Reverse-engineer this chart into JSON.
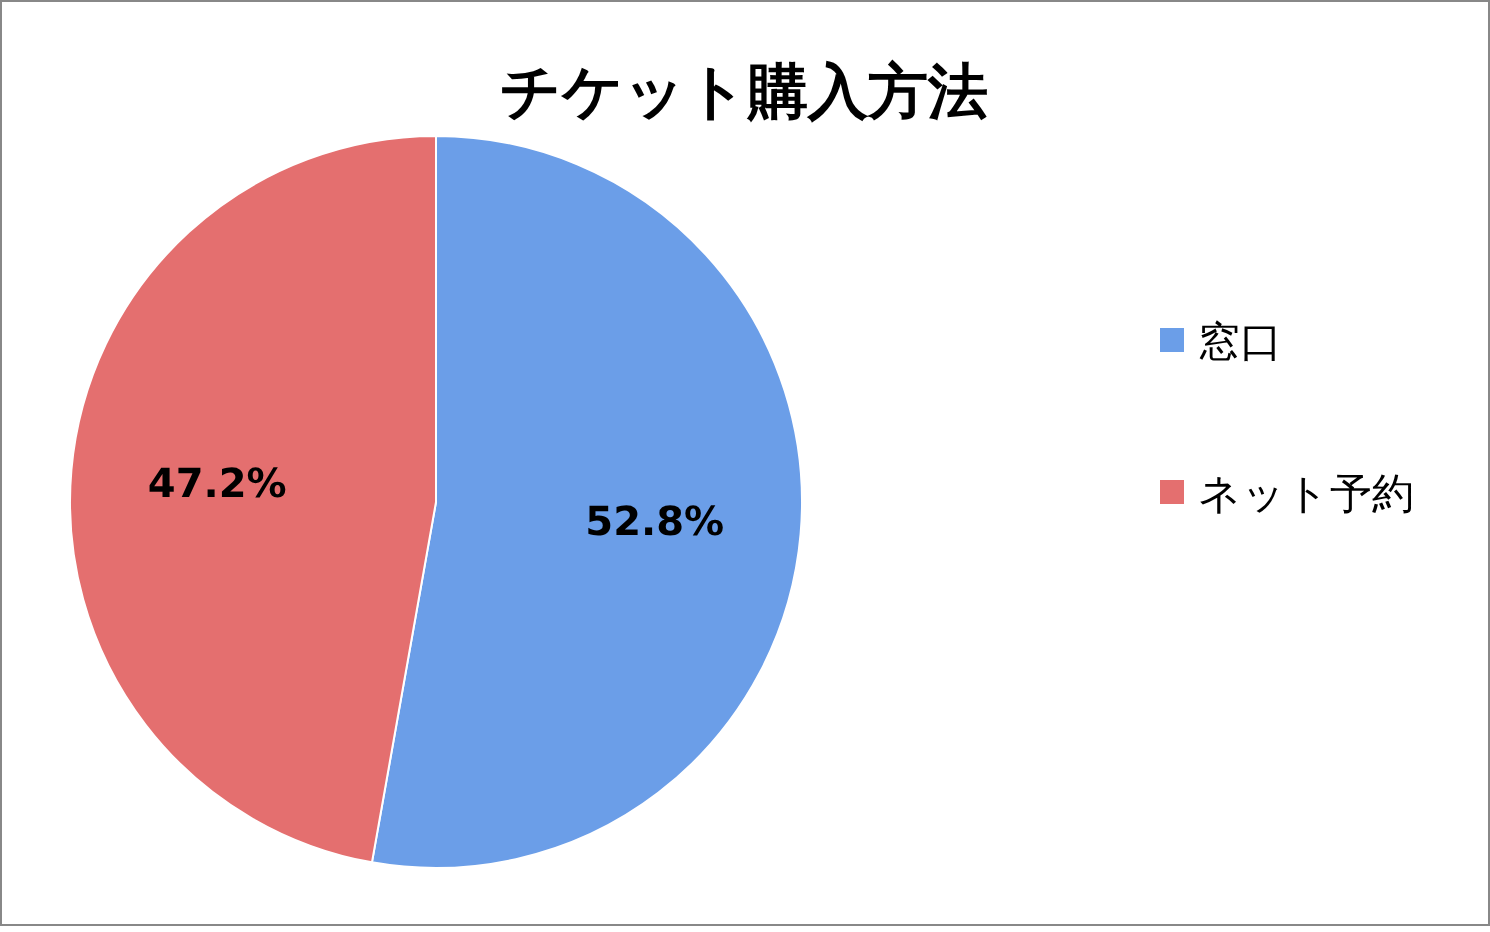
{
  "chart_data": {
    "type": "pie",
    "title": "チケット購入方法",
    "categories": [
      "窓口",
      "ネット予約"
    ],
    "values": [
      52.8,
      47.2
    ],
    "colors": [
      "#6b9ee8",
      "#e46f6f"
    ],
    "value_labels": [
      "52.8%",
      "47.2%"
    ],
    "legend": "right"
  }
}
